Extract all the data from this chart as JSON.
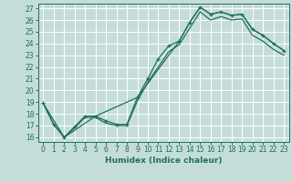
{
  "xlabel": "Humidex (Indice chaleur)",
  "bg_color": "#c5ddd8",
  "line_color": "#1e6e64",
  "grid_color": "#ffffff",
  "xlim": [
    -0.5,
    23.5
  ],
  "ylim": [
    15.6,
    27.4
  ],
  "xticks": [
    0,
    1,
    2,
    3,
    4,
    5,
    6,
    7,
    8,
    9,
    10,
    11,
    12,
    13,
    14,
    15,
    16,
    17,
    18,
    19,
    20,
    21,
    22,
    23
  ],
  "yticks": [
    16,
    17,
    18,
    19,
    20,
    21,
    22,
    23,
    24,
    25,
    26,
    27
  ],
  "line1_x": [
    0,
    1,
    2,
    3,
    4,
    5,
    6,
    7,
    8,
    9,
    10,
    11,
    12,
    13,
    14,
    15,
    16,
    17,
    18,
    19,
    20,
    21,
    22,
    23
  ],
  "line1_y": [
    18.9,
    17.1,
    16.0,
    16.9,
    17.8,
    17.8,
    17.4,
    17.1,
    17.1,
    19.4,
    21.0,
    22.7,
    23.8,
    24.2,
    25.8,
    27.1,
    26.5,
    26.7,
    26.4,
    26.5,
    25.2,
    24.7,
    24.0,
    23.4
  ],
  "line2_x": [
    0,
    1,
    2,
    3,
    4,
    5,
    6,
    7,
    8,
    9,
    10,
    11,
    12,
    13,
    14,
    15,
    16,
    17,
    18,
    19,
    20,
    21,
    22,
    23
  ],
  "line2_y": [
    18.9,
    17.1,
    16.0,
    16.8,
    17.7,
    17.7,
    17.2,
    17.0,
    17.0,
    19.1,
    20.7,
    22.0,
    23.3,
    23.9,
    25.3,
    26.7,
    26.0,
    26.3,
    26.0,
    26.1,
    24.7,
    24.2,
    23.5,
    23.0
  ],
  "line3_x": [
    0,
    2,
    5,
    9,
    13,
    14,
    15,
    16,
    17,
    18,
    19,
    20,
    21,
    22,
    23
  ],
  "line3_y": [
    18.9,
    16.0,
    17.8,
    19.4,
    24.2,
    25.8,
    27.1,
    26.5,
    26.7,
    26.4,
    26.5,
    25.2,
    24.7,
    24.0,
    23.4
  ]
}
